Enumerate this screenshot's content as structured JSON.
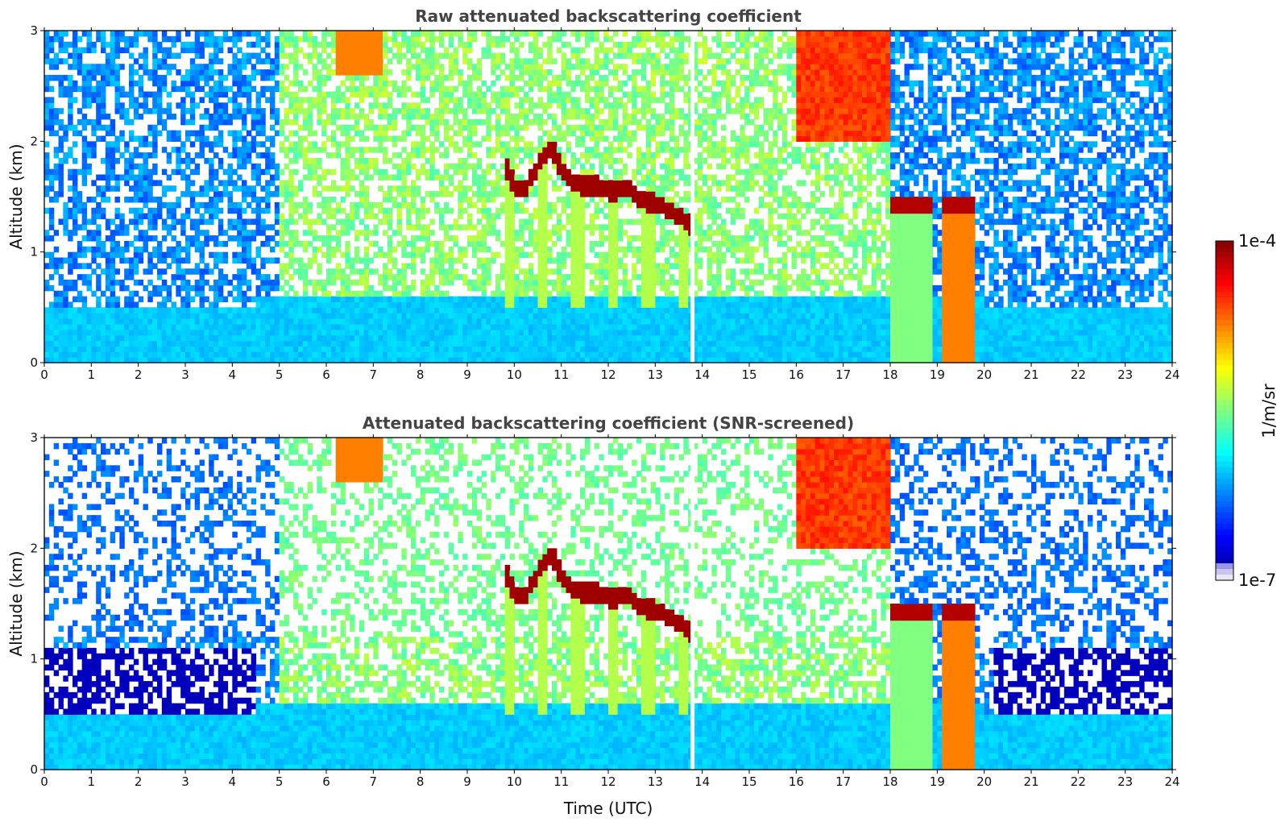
{
  "chart_data": [
    {
      "type": "heatmap",
      "title": "Raw attenuated backscattering coefficient",
      "xlabel": "",
      "ylabel": "Altitude (km)",
      "xlim": [
        0,
        24
      ],
      "ylim": [
        0,
        3
      ],
      "xticks": [
        "0",
        "1",
        "2",
        "3",
        "4",
        "5",
        "6",
        "7",
        "8",
        "9",
        "10",
        "11",
        "12",
        "13",
        "14",
        "15",
        "16",
        "17",
        "18",
        "19",
        "20",
        "21",
        "22",
        "23",
        "24"
      ],
      "yticks": [
        "0",
        "1",
        "2",
        "3"
      ],
      "screened": false,
      "cloud_layer": {
        "x": [
          9.8,
          10.0,
          10.2,
          10.4,
          10.6,
          10.8,
          11.0,
          11.2,
          11.4,
          11.6,
          11.8,
          12.0,
          12.2,
          12.4,
          12.6,
          12.8,
          13.0,
          13.2,
          13.4,
          13.6,
          13.75
        ],
        "y": [
          1.8,
          1.6,
          1.55,
          1.7,
          1.85,
          1.95,
          1.75,
          1.65,
          1.6,
          1.6,
          1.6,
          1.55,
          1.55,
          1.6,
          1.5,
          1.45,
          1.45,
          1.4,
          1.35,
          1.3,
          1.25
        ]
      },
      "precip_bands": [
        [
          18.0,
          18.9
        ],
        [
          19.1,
          19.8
        ]
      ]
    },
    {
      "type": "heatmap",
      "title": "Attenuated backscattering coefficient (SNR-screened)",
      "xlabel": "Time (UTC)",
      "ylabel": "Altitude (km)",
      "xlim": [
        0,
        24
      ],
      "ylim": [
        0,
        3
      ],
      "xticks": [
        "0",
        "1",
        "2",
        "3",
        "4",
        "5",
        "6",
        "7",
        "8",
        "9",
        "10",
        "11",
        "12",
        "13",
        "14",
        "15",
        "16",
        "17",
        "18",
        "19",
        "20",
        "21",
        "22",
        "23",
        "24"
      ],
      "yticks": [
        "0",
        "1",
        "2",
        "3"
      ],
      "screened": true,
      "cloud_layer": {
        "x": [
          9.8,
          10.0,
          10.2,
          10.4,
          10.6,
          10.8,
          11.0,
          11.2,
          11.4,
          11.6,
          11.8,
          12.0,
          12.2,
          12.4,
          12.6,
          12.8,
          13.0,
          13.2,
          13.4,
          13.6,
          13.75
        ],
        "y": [
          1.8,
          1.6,
          1.55,
          1.7,
          1.85,
          1.95,
          1.75,
          1.65,
          1.6,
          1.6,
          1.6,
          1.55,
          1.55,
          1.6,
          1.5,
          1.45,
          1.45,
          1.4,
          1.35,
          1.3,
          1.25
        ]
      },
      "precip_bands": [
        [
          18.0,
          18.9
        ],
        [
          19.1,
          19.8
        ]
      ]
    }
  ],
  "colorbar": {
    "label": "1/m/sr",
    "max_label": "1e-4",
    "min_label": "1e-7",
    "colormap": "jet"
  }
}
